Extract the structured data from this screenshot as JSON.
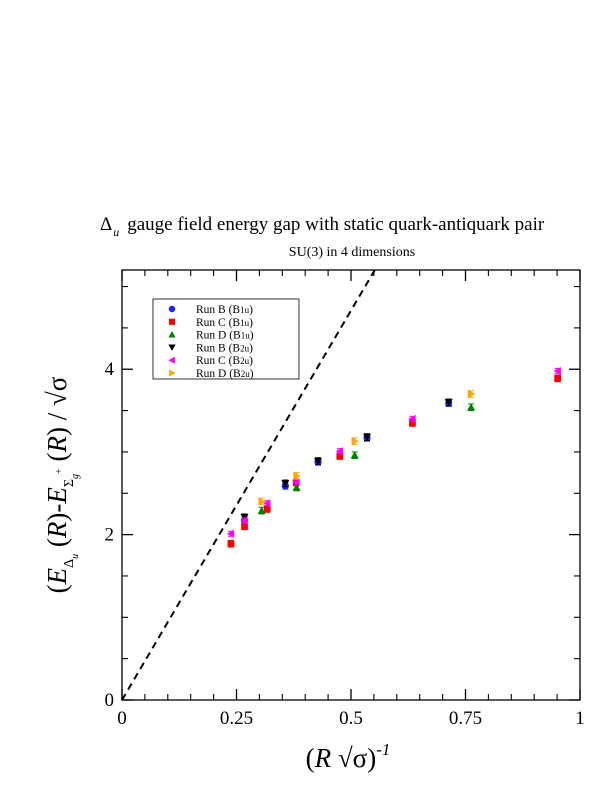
{
  "chart_data": {
    "type": "scatter",
    "title": "Δu gauge field energy gap with static quark-antiquark pair",
    "title_parts": {
      "symbol": "Δ",
      "subscript": "u",
      "rest": "gauge field energy gap with static quark-antiquark pair"
    },
    "subtitle": "SU(3) in 4 dimensions",
    "xlabel": "(R √σ)⁻¹",
    "ylabel": "(EΔu(R)-EΣg+(R) / √σ",
    "xlim": [
      0,
      1.0
    ],
    "ylim": [
      0,
      5.2
    ],
    "x_ticks": [
      0,
      0.25,
      0.5,
      0.75,
      1
    ],
    "x_tick_labels": [
      "0",
      "0.25",
      "0.5",
      "0.75",
      "1"
    ],
    "y_ticks": [
      0,
      2,
      4
    ],
    "y_tick_labels": [
      "0",
      "2",
      "4"
    ],
    "grid": false,
    "legend_position": "top-left",
    "reference_line": {
      "style": "dashed",
      "color": "#000000",
      "slope": 9.42,
      "intercept": 0
    },
    "series": [
      {
        "name": "Run B (B1u)",
        "name_main": "Run B (B",
        "name_sub": "1u",
        "marker": "circle",
        "color": "#1f1fff",
        "x": [
          0.2675,
          0.3566,
          0.428,
          0.535,
          0.7133
        ],
        "y": [
          2.17,
          2.59,
          2.88,
          3.17,
          3.59
        ],
        "err": [
          0.04,
          0.04,
          0.04,
          0.04,
          0.04
        ]
      },
      {
        "name": "Run C (B1u)",
        "name_main": "Run C (B",
        "name_sub": "1u",
        "marker": "square",
        "color": "#ff0000",
        "x": [
          0.2378,
          0.2675,
          0.317,
          0.3805,
          0.4756,
          0.6341,
          0.9512
        ],
        "y": [
          1.89,
          2.1,
          2.31,
          2.63,
          2.95,
          3.35,
          3.89
        ],
        "err": [
          0.04,
          0.04,
          0.04,
          0.04,
          0.04,
          0.04,
          0.04
        ]
      },
      {
        "name": "Run D (B1u)",
        "name_main": "Run D (B",
        "name_sub": "1u",
        "marker": "triangle-up",
        "color": "#008000",
        "x": [
          0.3049,
          0.3811,
          0.5081,
          0.7622
        ],
        "y": [
          2.29,
          2.57,
          2.96,
          3.54
        ],
        "err": [
          0.04,
          0.04,
          0.04,
          0.04
        ]
      },
      {
        "name": "Run B (B2u)",
        "name_main": "Run B (B",
        "name_sub": "2u",
        "marker": "triangle-down",
        "color": "#000000",
        "x": [
          0.2675,
          0.3566,
          0.428,
          0.535,
          0.7133
        ],
        "y": [
          2.21,
          2.62,
          2.89,
          3.18,
          3.6
        ],
        "err": [
          0.04,
          0.04,
          0.04,
          0.04,
          0.04
        ]
      },
      {
        "name": "Run C (B2u)",
        "name_main": "Run C (B",
        "name_sub": "2u",
        "marker": "triangle-left",
        "color": "#ff00ff",
        "x": [
          0.2378,
          0.2675,
          0.317,
          0.3805,
          0.4756,
          0.6341,
          0.9512
        ],
        "y": [
          2.01,
          2.17,
          2.38,
          2.64,
          3.01,
          3.4,
          3.98
        ],
        "err": [
          0.03,
          0.03,
          0.03,
          0.03,
          0.03,
          0.03,
          0.03
        ]
      },
      {
        "name": "Run D (B2u)",
        "name_main": "Run D (B",
        "name_sub": "2u",
        "marker": "triangle-right",
        "color": "#ffa500",
        "x": [
          0.3049,
          0.3811,
          0.5081,
          0.7622
        ],
        "y": [
          2.4,
          2.71,
          3.13,
          3.7
        ],
        "err": [
          0.04,
          0.04,
          0.04,
          0.04
        ]
      }
    ]
  }
}
